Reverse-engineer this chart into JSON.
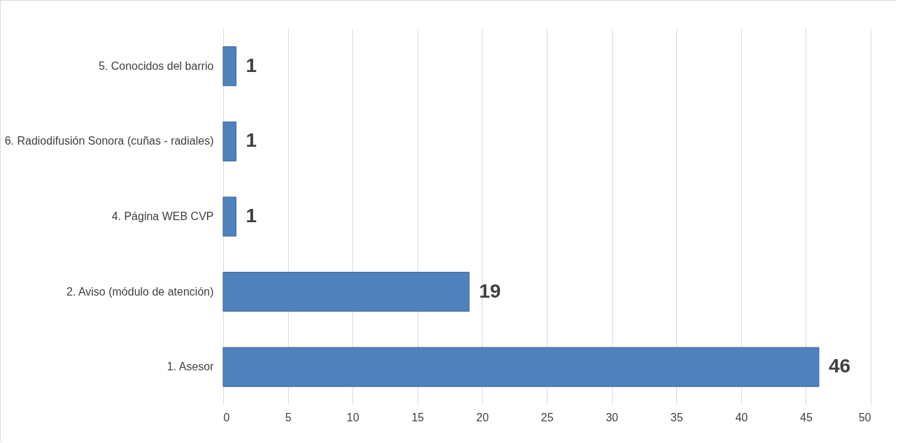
{
  "chart_data": {
    "type": "bar",
    "orientation": "horizontal",
    "categories": [
      "5. Conocidos del barrio",
      "6. Radiodifusión Sonora (cuñas - radiales)",
      "4. Página WEB CVP",
      "2. Aviso (módulo de atención)",
      "1. Asesor"
    ],
    "values": [
      1,
      1,
      1,
      19,
      46
    ],
    "color": "#4f81bd",
    "data_labels": true,
    "xlim": [
      0,
      50
    ],
    "xticks": [
      0,
      5,
      10,
      15,
      20,
      25,
      30,
      35,
      40,
      45,
      50
    ],
    "grid": "x"
  }
}
